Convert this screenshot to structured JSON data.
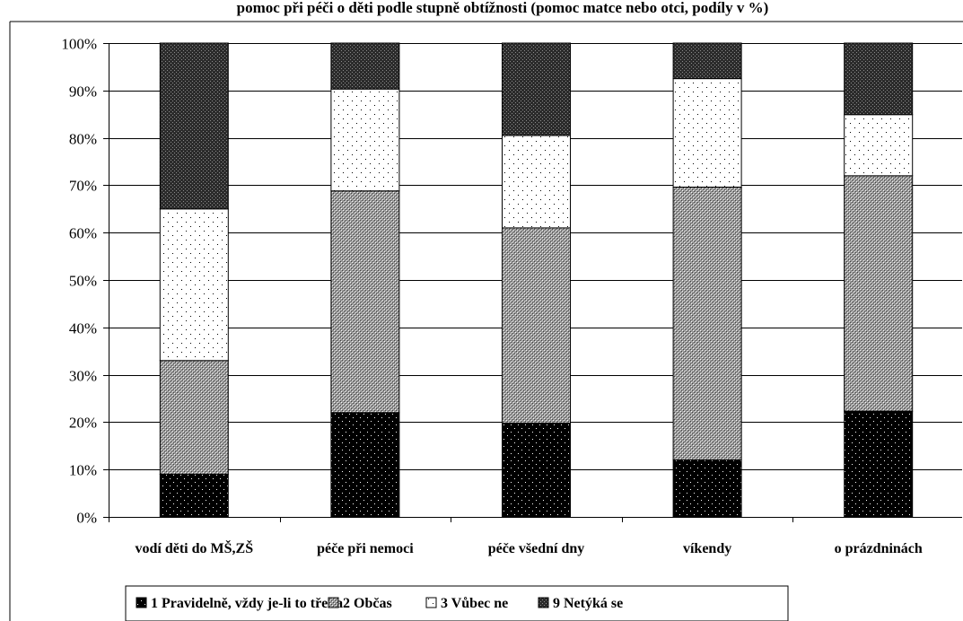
{
  "chart_data": {
    "type": "bar",
    "stacked": true,
    "title": "pomoc při péči o děti podle stupně obtížnosti (pomoc matce nebo otci, podíly v %)",
    "categories": [
      "vodí děti do MŠ,ZŠ",
      "péče při nemoci",
      "péče všední dny",
      "víkendy",
      "o prázdninách"
    ],
    "series": [
      {
        "name": "1   Pravidelně, vždy je-li to třeba",
        "legend_name": "1   Pravidelně, vždy je-li to třeba",
        "pattern": "dots-on-black",
        "values": [
          9,
          22,
          19.8,
          12,
          22.3
        ]
      },
      {
        "name": "2  Občas",
        "legend_name": "2  Občas",
        "pattern": "grey-crosshatch",
        "values": [
          24,
          46.8,
          41.2,
          57.6,
          49.7
        ]
      },
      {
        "name": "3  Vůbec ne",
        "legend_name": "3  Vůbec ne",
        "pattern": "sparse-dots",
        "values": [
          32,
          21.5,
          19.5,
          22.9,
          12.9
        ]
      },
      {
        "name": "9  Netýká se",
        "legend_name": "9  Netýká se",
        "pattern": "dark-crosshatch",
        "values": [
          35,
          9.7,
          19.5,
          7.5,
          15.1
        ]
      }
    ],
    "ylim": [
      0,
      100
    ],
    "yticks": [
      "0%",
      "10%",
      "20%",
      "30%",
      "40%",
      "50%",
      "60%",
      "70%",
      "80%",
      "90%",
      "100%"
    ],
    "grid": true,
    "legend_position": "bottom"
  },
  "colors": {
    "background": "#ffffff",
    "gridline": "#000000",
    "bar_outline": "#000000"
  }
}
